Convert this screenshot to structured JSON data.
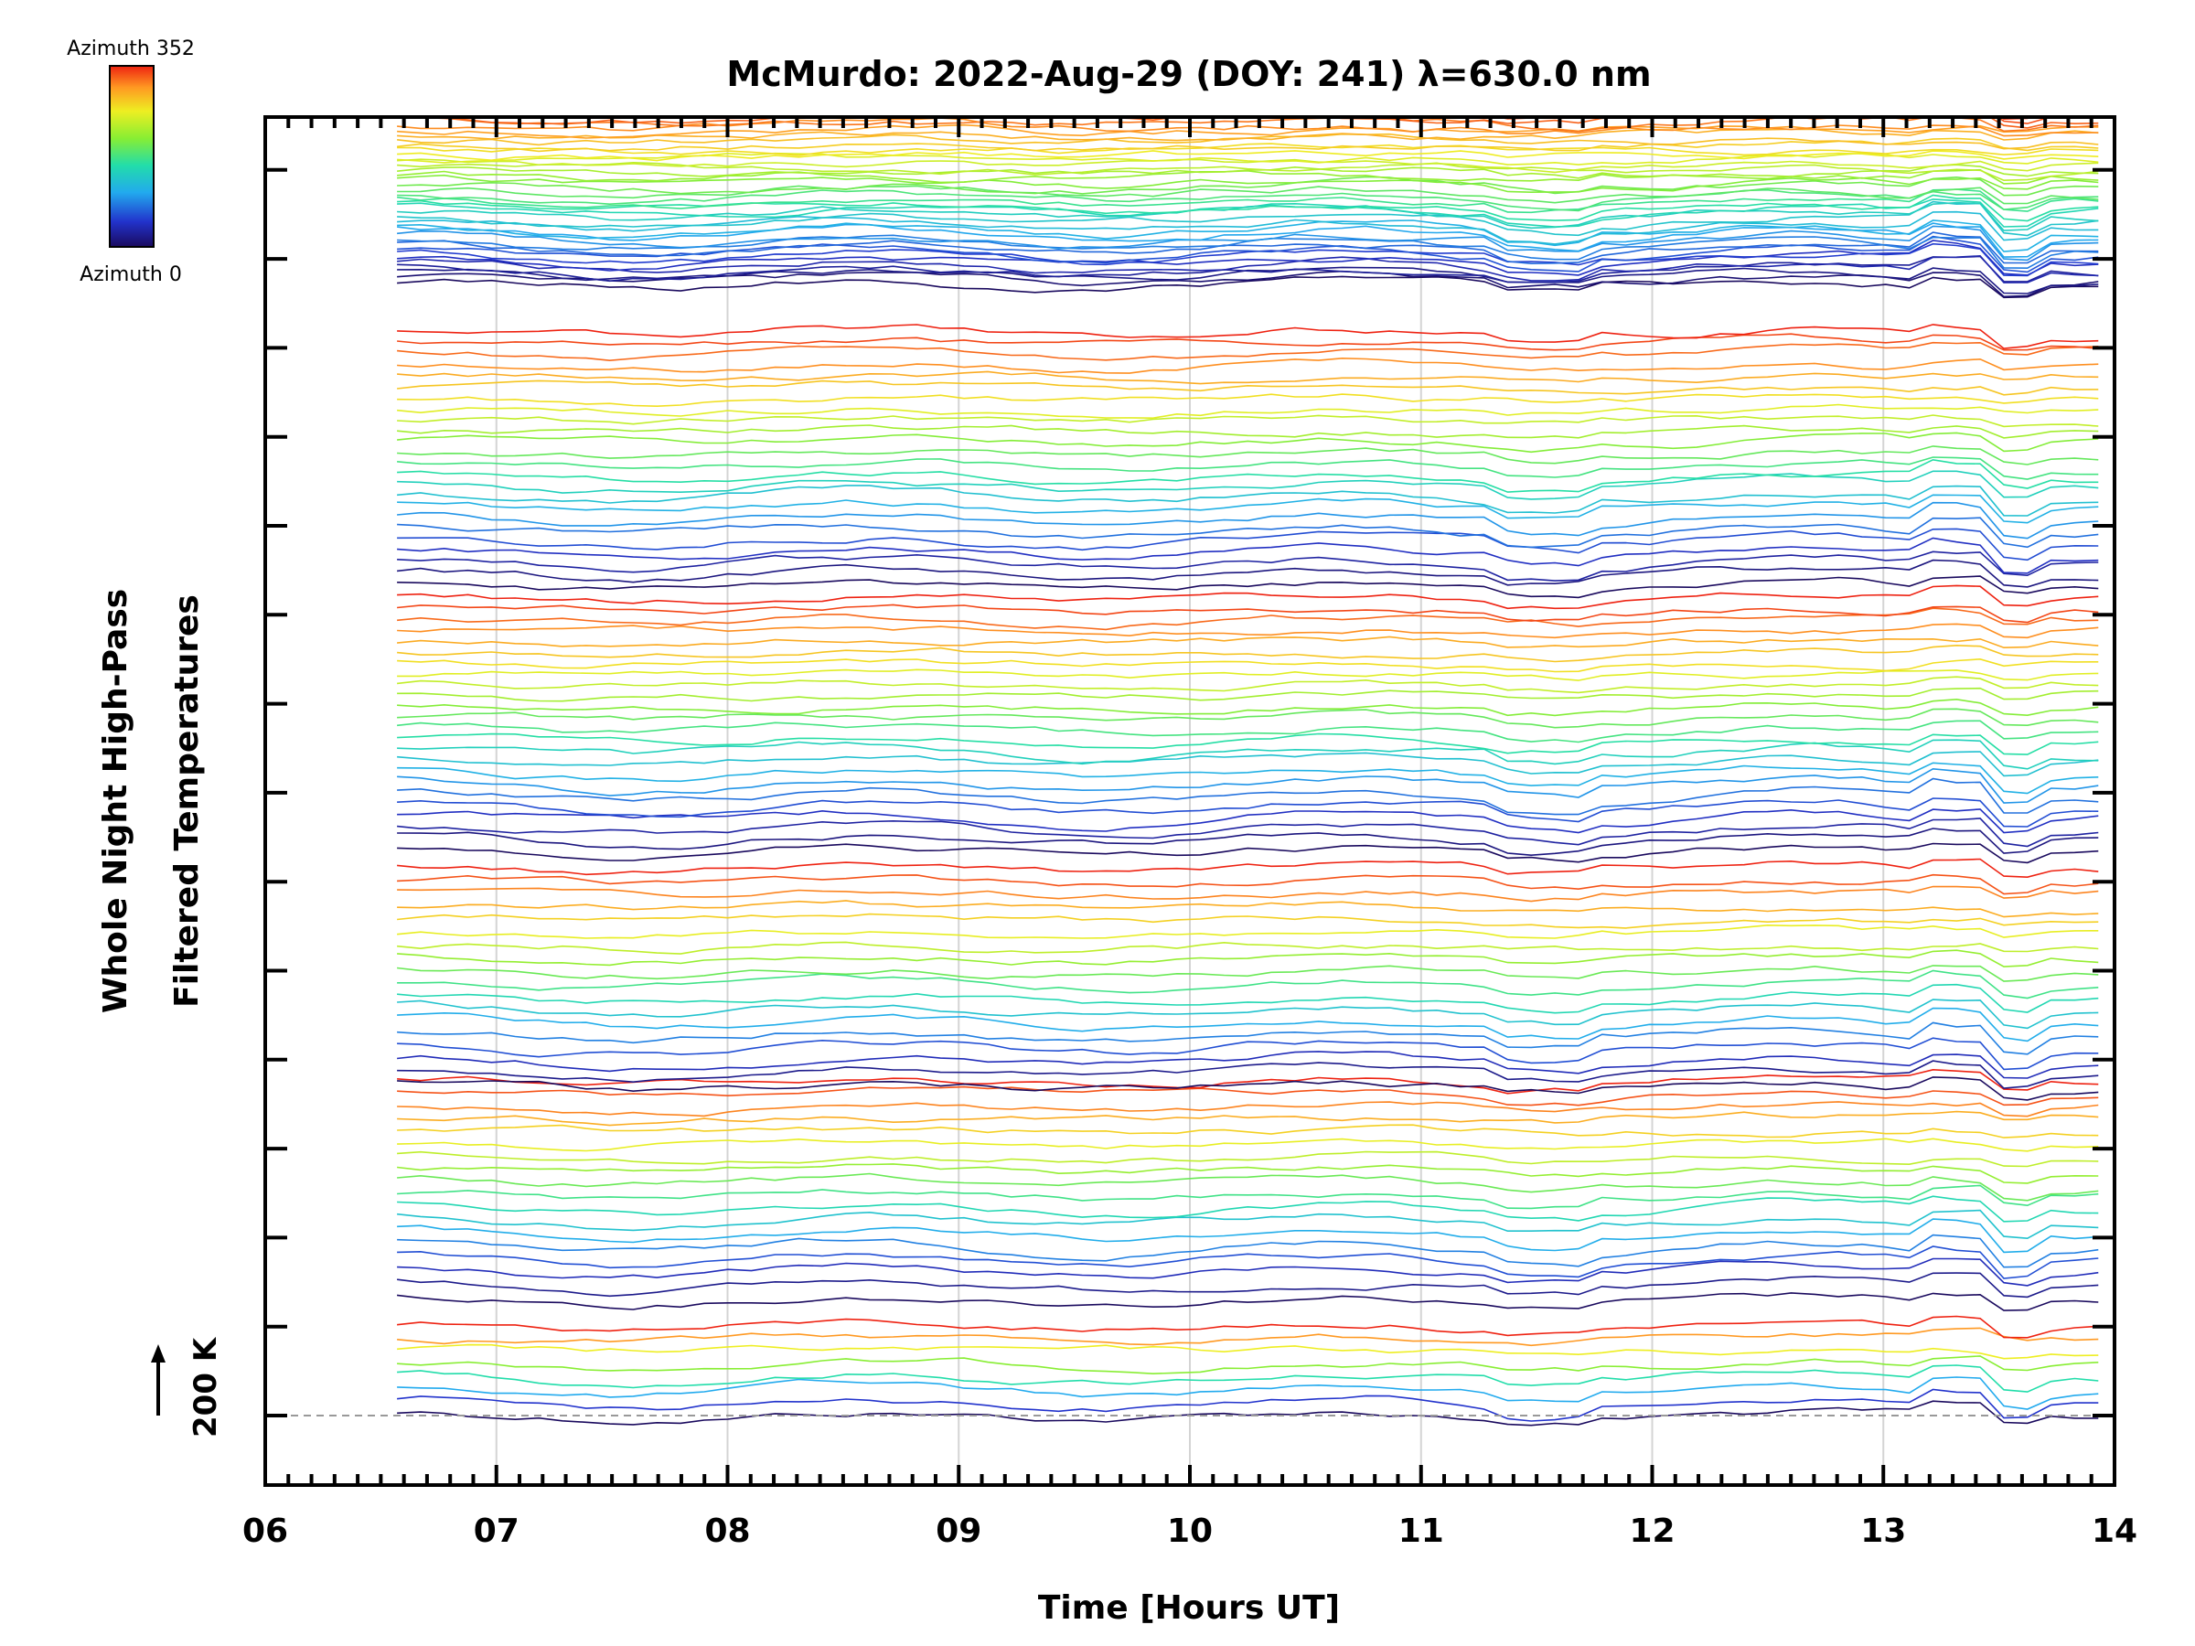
{
  "chart_data": {
    "type": "line",
    "title": "McMurdo: 2022-Aug-29 (DOY: 241) λ=630.0 nm",
    "xlabel": "Time [Hours UT]",
    "ylabel_line1": "Whole Night High-Pass",
    "ylabel_line2": "Filtered Temperatures",
    "xlim": [
      6,
      14
    ],
    "x_tick_labels": [
      "06",
      "07",
      "08",
      "09",
      "10",
      "11",
      "12",
      "13",
      "14"
    ],
    "data_time_range": [
      6.57,
      13.93
    ],
    "grid": true,
    "scale_bar_label": "200 K",
    "colorbar": {
      "label_max": "Azimuth 352",
      "label_min": "Azimuth 0",
      "colormap": "rainbow",
      "colors": [
        "#1a0a5e",
        "#2233cc",
        "#22aaee",
        "#22ddaa",
        "#88ee33",
        "#eeee22",
        "#ff9922",
        "#ee2211"
      ]
    },
    "series_count": 132,
    "series_structure": "Stacked traces ordered by zenith ring; within each ring colored by azimuth from 0 (dark blue) to 352 (red)"
  }
}
